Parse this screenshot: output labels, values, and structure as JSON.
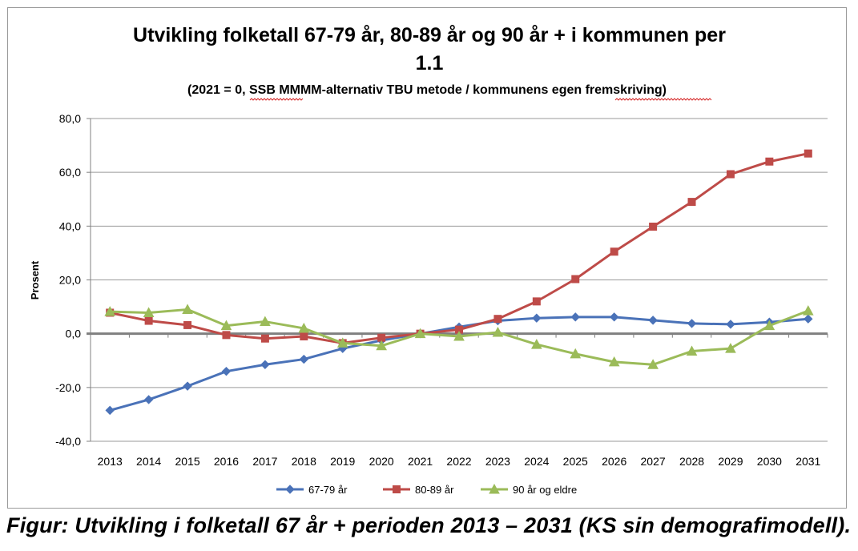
{
  "chart_data": {
    "type": "line",
    "title_line1": "Utvikling folketall 67-79 år, 80-89 år og 90 år + i kommunen per",
    "title_line2": "1.1",
    "subtitle": "(2021 = 0, SSB MMMM-alternativ TBU metode / kommunens egen fremskriving)",
    "ylabel": "Prosent",
    "xlabel": "",
    "ylim": [
      -40,
      80
    ],
    "ytick_labels": [
      "80,0",
      "60,0",
      "40,0",
      "20,0",
      "0,0",
      "-20,0",
      "-40,0"
    ],
    "grid": true,
    "legend_position": "bottom",
    "categories": [
      "2013",
      "2014",
      "2015",
      "2016",
      "2017",
      "2018",
      "2019",
      "2020",
      "2021",
      "2022",
      "2023",
      "2024",
      "2025",
      "2026",
      "2027",
      "2028",
      "2029",
      "2030",
      "2031"
    ],
    "series": [
      {
        "name": "67-79 år",
        "color": "#4a72b8",
        "marker": "diamond",
        "values": [
          -28.5,
          -24.5,
          -19.5,
          -14.0,
          -11.5,
          -9.5,
          -5.5,
          -2.5,
          0.0,
          2.5,
          4.8,
          5.8,
          6.2,
          6.2,
          5.0,
          3.8,
          3.5,
          4.3,
          5.5
        ]
      },
      {
        "name": "80-89 år",
        "color": "#be4b48",
        "marker": "square",
        "values": [
          7.8,
          4.8,
          3.2,
          -0.5,
          -1.8,
          -1.0,
          -3.5,
          -1.5,
          0.0,
          1.5,
          5.5,
          12.0,
          20.3,
          30.5,
          39.8,
          49.0,
          59.3,
          64.0,
          67.0
        ]
      },
      {
        "name": "90 år og eldre",
        "color": "#9bbb59",
        "marker": "triangle",
        "values": [
          8.2,
          7.8,
          9.0,
          3.0,
          4.5,
          2.0,
          -3.5,
          -4.5,
          0.0,
          -1.0,
          0.5,
          -4.0,
          -7.5,
          -10.5,
          -11.5,
          -6.5,
          -5.5,
          3.0,
          8.5
        ]
      }
    ]
  },
  "caption": "Figur: Utvikling i folketall 67 år + perioden 2013 – 2031 (KS sin demografimodell)."
}
